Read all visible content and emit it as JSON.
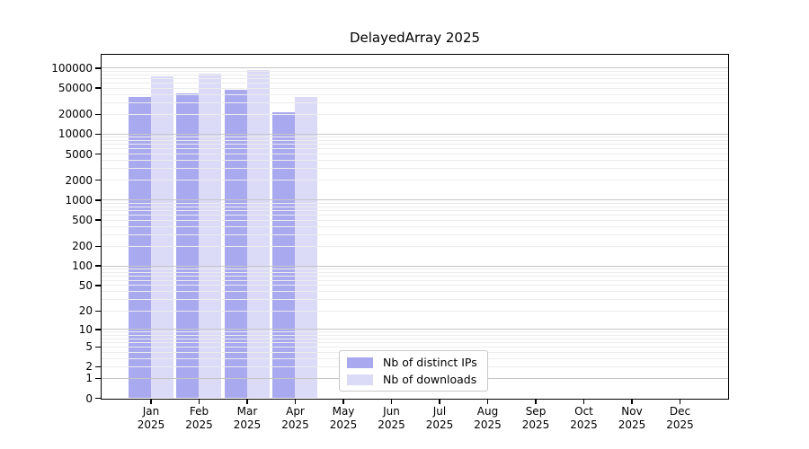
{
  "figure": {
    "title": "DelayedArray 2025"
  },
  "chart_data": {
    "type": "bar",
    "title": "DelayedArray 2025",
    "xlabel": "",
    "ylabel": "",
    "categories": [
      "Jan 2025",
      "Feb 2025",
      "Mar 2025",
      "Apr 2025",
      "May 2025",
      "Jun 2025",
      "Jul 2025",
      "Aug 2025",
      "Sep 2025",
      "Oct 2025",
      "Nov 2025",
      "Dec 2025"
    ],
    "series": [
      {
        "name": "Nb of distinct IPs",
        "color": "#a9a9f0",
        "values": [
          36000,
          41000,
          47000,
          21000,
          null,
          null,
          null,
          null,
          null,
          null,
          null,
          null
        ]
      },
      {
        "name": "Nb of downloads",
        "color": "#dbdbf8",
        "values": [
          73000,
          82000,
          93000,
          36500,
          null,
          null,
          null,
          null,
          null,
          null,
          null,
          null
        ]
      }
    ],
    "yscale": "log10(value+1)",
    "yticks": [
      0,
      1,
      2,
      5,
      10,
      20,
      50,
      100,
      200,
      500,
      1000,
      2000,
      5000,
      10000,
      20000,
      50000,
      100000
    ],
    "ylim": [
      0,
      157000
    ],
    "grid": true,
    "legend_position": "inside bottom-center"
  },
  "colors": {
    "grid_major": "#c6c6c6",
    "grid_minor": "#ececec",
    "axis": "#000000",
    "background": "#ffffff",
    "legend_border": "#c9c9c9"
  }
}
